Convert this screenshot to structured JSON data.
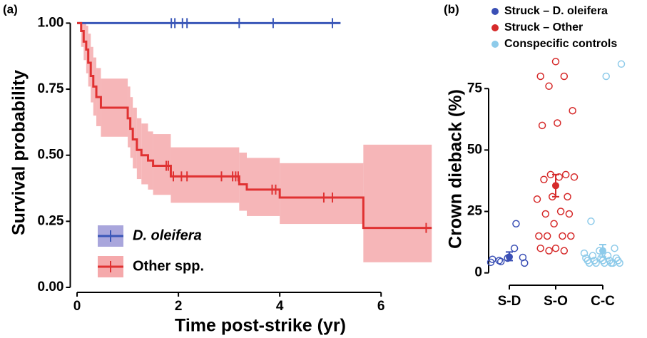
{
  "chart_data": [
    {
      "type": "survival",
      "panel_label": "(a)",
      "x_label": "Time post-strike (yr)",
      "y_label": "Survival probability",
      "xlim": [
        -0.05,
        7.25
      ],
      "ylim": [
        0,
        1.02
      ],
      "xticks": [
        0,
        2,
        4,
        6
      ],
      "yticks": [
        {
          "value": 0,
          "label": "0.00"
        },
        {
          "value": 0.25,
          "label": "0.25"
        },
        {
          "value": 0.5,
          "label": "0.50"
        },
        {
          "value": 0.75,
          "label": "0.75"
        },
        {
          "value": 1,
          "label": "1.00"
        }
      ],
      "legend": "bottom-left",
      "series": [
        {
          "name": "D. oleifera",
          "color": "#3a57b8",
          "band_color": "#a9a6dc",
          "x": [
            0,
            5.2
          ],
          "values": [
            1,
            1
          ],
          "censored": [
            1.86,
            1.93,
            2.08,
            2.17,
            3.2,
            3.87,
            5.04
          ]
        },
        {
          "name": "Other spp.",
          "color": "#e03232",
          "band_color": "#f5a9ab",
          "x": [
            0,
            0.08,
            0.13,
            0.18,
            0.22,
            0.27,
            0.32,
            0.38,
            0.47,
            1.0,
            1.05,
            1.1,
            1.18,
            1.27,
            1.4,
            1.5,
            1.85,
            3.2,
            3.35,
            4.0,
            5.65,
            7.0
          ],
          "values": [
            1,
            0.97,
            0.93,
            0.9,
            0.85,
            0.8,
            0.76,
            0.72,
            0.68,
            0.64,
            0.6,
            0.56,
            0.52,
            0.5,
            0.48,
            0.46,
            0.42,
            0.39,
            0.37,
            0.34,
            0.225,
            0.225
          ],
          "lower": [
            1,
            0.91,
            0.86,
            0.81,
            0.76,
            0.7,
            0.65,
            0.61,
            0.57,
            0.53,
            0.49,
            0.45,
            0.41,
            0.39,
            0.37,
            0.35,
            0.32,
            0.29,
            0.27,
            0.24,
            0.095,
            0.095
          ],
          "upper": [
            1,
            1,
            1,
            0.99,
            0.96,
            0.91,
            0.87,
            0.83,
            0.79,
            0.76,
            0.72,
            0.68,
            0.64,
            0.62,
            0.59,
            0.58,
            0.53,
            0.51,
            0.49,
            0.47,
            0.54,
            0.54
          ],
          "censored": [
            1.76,
            1.8,
            1.9,
            2.06,
            2.17,
            2.85,
            3.07,
            3.13,
            3.18,
            3.85,
            3.92,
            4.87,
            5.04,
            6.89
          ]
        }
      ]
    },
    {
      "type": "strip",
      "panel_label": "(b)",
      "y_label": "Crown dieback (%)",
      "categories": [
        "S-D",
        "S-O",
        "C-C"
      ],
      "ylim": [
        -3,
        98
      ],
      "yticks": [
        0,
        25,
        50,
        75
      ],
      "legend": "top-left",
      "series": [
        {
          "name": "Struck – D. oleifera",
          "color": "#3a4fb5",
          "values": [
            4.3,
            10,
            5,
            6.3,
            6,
            5.5,
            20,
            4.6,
            4
          ],
          "mean": 6.5,
          "err_low": 5,
          "err_high": 8.5
        },
        {
          "name": "Struck – Other",
          "color": "#d62a2a",
          "values": [
            86,
            80,
            80,
            76,
            66,
            61,
            60,
            40,
            40,
            39,
            39,
            38,
            31,
            31,
            30,
            25,
            24,
            24,
            20,
            15,
            15,
            15,
            15,
            10,
            10,
            9,
            9
          ],
          "mean": 35.5,
          "err_low": 31,
          "err_high": 40
        },
        {
          "name": "Conspecific controls",
          "color": "#8ecbea",
          "values": [
            85,
            80,
            21,
            10,
            9,
            8,
            7,
            7,
            6,
            6,
            6,
            5,
            5,
            5,
            5,
            5,
            4,
            4,
            4,
            4,
            4,
            4
          ],
          "mean": 9,
          "err_low": 6.5,
          "err_high": 11.5
        }
      ]
    }
  ]
}
